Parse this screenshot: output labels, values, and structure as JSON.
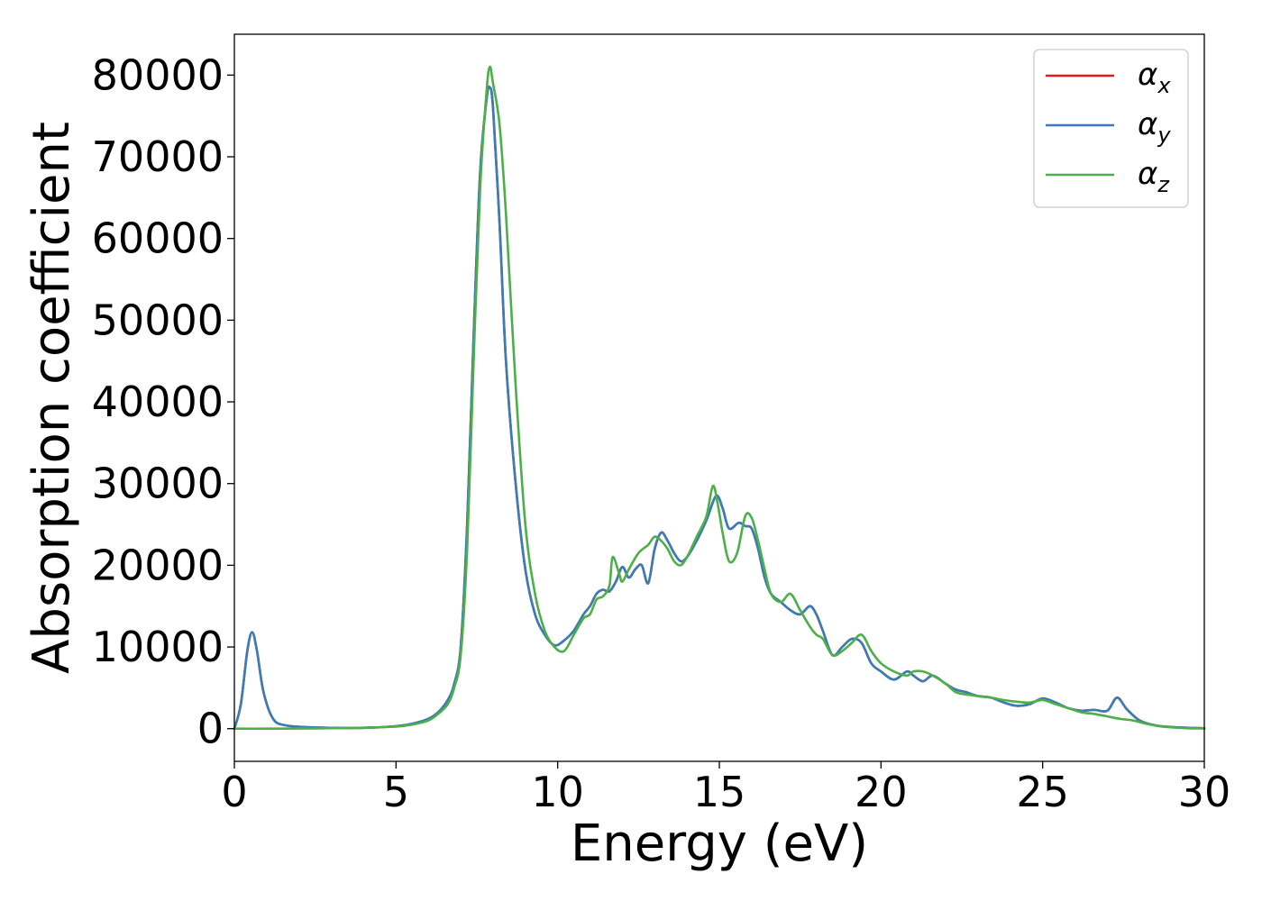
{
  "chart_data": {
    "type": "line",
    "title": "",
    "xlabel": "Energy (eV)",
    "ylabel": "Absorption coefficient",
    "xlim": [
      0,
      30
    ],
    "ylim": [
      -4000,
      85000
    ],
    "x_ticks": [
      "0",
      "5",
      "10",
      "15",
      "20",
      "25",
      "30"
    ],
    "y_ticks": [
      "0",
      "10000",
      "20000",
      "30000",
      "40000",
      "50000",
      "60000",
      "70000",
      "80000"
    ],
    "grid": false,
    "legend_position": "top-right",
    "series": [
      {
        "name": "α",
        "subscript": "x",
        "color": "#e41a1c",
        "x": [
          0,
          0.2,
          0.4,
          0.55,
          0.7,
          0.9,
          1.2,
          1.6,
          2.5,
          4,
          5,
          5.5,
          6,
          6.3,
          6.6,
          6.8,
          7.0,
          7.2,
          7.4,
          7.6,
          7.8,
          7.9,
          8.0,
          8.2,
          8.4,
          8.7,
          9.0,
          9.3,
          9.6,
          9.9,
          10.2,
          10.5,
          10.8,
          11.0,
          11.2,
          11.4,
          11.6,
          11.8,
          12.0,
          12.2,
          12.4,
          12.6,
          12.8,
          13.0,
          13.2,
          13.4,
          13.6,
          13.8,
          14.0,
          14.3,
          14.6,
          14.9,
          15.1,
          15.3,
          15.6,
          15.8,
          16.0,
          16.2,
          16.4,
          16.6,
          16.9,
          17.2,
          17.5,
          17.8,
          18.0,
          18.2,
          18.5,
          18.8,
          19.1,
          19.4,
          19.7,
          20.0,
          20.4,
          20.8,
          21.0,
          21.3,
          21.6,
          22.0,
          22.3,
          22.6,
          23.0,
          23.4,
          23.8,
          24.2,
          24.6,
          25.0,
          25.4,
          25.8,
          26.2,
          26.6,
          27.0,
          27.3,
          27.6,
          28.0,
          28.5,
          29.0,
          29.5,
          30
        ],
        "values": [
          0,
          3000,
          9500,
          11800,
          9500,
          4500,
          1200,
          400,
          150,
          100,
          300,
          600,
          1200,
          2000,
          3500,
          5500,
          10000,
          25000,
          48000,
          68000,
          77000,
          78500,
          76000,
          62000,
          45000,
          30000,
          19500,
          14000,
          11500,
          10200,
          10800,
          12000,
          14000,
          15000,
          16500,
          17000,
          16800,
          18000,
          19800,
          18500,
          19500,
          20000,
          17800,
          22000,
          24000,
          23000,
          21500,
          20500,
          21000,
          23000,
          25500,
          28500,
          27000,
          24500,
          25200,
          24800,
          24500,
          22000,
          18500,
          16500,
          15500,
          14500,
          14000,
          15000,
          14000,
          12000,
          9000,
          10000,
          11000,
          10500,
          8000,
          7000,
          6000,
          7000,
          6500,
          5800,
          6500,
          5500,
          4800,
          4500,
          4000,
          3800,
          3200,
          2800,
          3000,
          3700,
          3200,
          2500,
          2200,
          2300,
          2200,
          3800,
          2400,
          1000,
          400,
          200,
          100,
          50
        ]
      },
      {
        "name": "α",
        "subscript": "y",
        "color": "#377eb8",
        "x": [
          0,
          0.2,
          0.4,
          0.55,
          0.7,
          0.9,
          1.2,
          1.6,
          2.5,
          4,
          5,
          5.5,
          6,
          6.3,
          6.6,
          6.8,
          7.0,
          7.2,
          7.4,
          7.6,
          7.8,
          7.9,
          8.0,
          8.2,
          8.4,
          8.7,
          9.0,
          9.3,
          9.6,
          9.9,
          10.2,
          10.5,
          10.8,
          11.0,
          11.2,
          11.4,
          11.6,
          11.8,
          12.0,
          12.2,
          12.4,
          12.6,
          12.8,
          13.0,
          13.2,
          13.4,
          13.6,
          13.8,
          14.0,
          14.3,
          14.6,
          14.9,
          15.1,
          15.3,
          15.6,
          15.8,
          16.0,
          16.2,
          16.4,
          16.6,
          16.9,
          17.2,
          17.5,
          17.8,
          18.0,
          18.2,
          18.5,
          18.8,
          19.1,
          19.4,
          19.7,
          20.0,
          20.4,
          20.8,
          21.0,
          21.3,
          21.6,
          22.0,
          22.3,
          22.6,
          23.0,
          23.4,
          23.8,
          24.2,
          24.6,
          25.0,
          25.4,
          25.8,
          26.2,
          26.6,
          27.0,
          27.3,
          27.6,
          28.0,
          28.5,
          29.0,
          29.5,
          30
        ],
        "values": [
          0,
          3000,
          9500,
          11800,
          9500,
          4500,
          1200,
          400,
          150,
          100,
          300,
          600,
          1200,
          2000,
          3500,
          5500,
          10000,
          25000,
          48000,
          68000,
          77000,
          78500,
          76000,
          62000,
          45000,
          30000,
          19500,
          14000,
          11500,
          10200,
          10800,
          12000,
          14000,
          15000,
          16500,
          17000,
          16800,
          18000,
          19800,
          18500,
          19500,
          20000,
          17800,
          22000,
          24000,
          23000,
          21500,
          20500,
          21000,
          23000,
          25500,
          28500,
          27000,
          24500,
          25200,
          24800,
          24500,
          22000,
          18500,
          16500,
          15500,
          14500,
          14000,
          15000,
          14000,
          12000,
          9000,
          10000,
          11000,
          10500,
          8000,
          7000,
          6000,
          7000,
          6500,
          5800,
          6500,
          5500,
          4800,
          4500,
          4000,
          3800,
          3200,
          2800,
          3000,
          3700,
          3200,
          2500,
          2200,
          2300,
          2200,
          3800,
          2400,
          1000,
          400,
          200,
          100,
          50
        ]
      },
      {
        "name": "α",
        "subscript": "z",
        "color": "#4daf4a",
        "x": [
          0,
          1,
          2,
          3,
          4,
          5,
          5.5,
          6,
          6.3,
          6.6,
          6.8,
          7.0,
          7.2,
          7.4,
          7.6,
          7.8,
          7.9,
          8.0,
          8.2,
          8.4,
          8.7,
          9.0,
          9.3,
          9.6,
          9.9,
          10.2,
          10.5,
          10.8,
          11.0,
          11.2,
          11.4,
          11.6,
          11.7,
          11.9,
          12.0,
          12.2,
          12.5,
          12.8,
          13.0,
          13.2,
          13.4,
          13.6,
          13.8,
          14.0,
          14.3,
          14.6,
          14.8,
          14.95,
          15.1,
          15.3,
          15.55,
          15.8,
          16.0,
          16.2,
          16.4,
          16.6,
          16.9,
          17.2,
          17.5,
          17.8,
          18.0,
          18.2,
          18.5,
          18.8,
          19.1,
          19.4,
          19.7,
          20.0,
          20.4,
          20.8,
          21.0,
          21.3,
          21.6,
          22.0,
          22.3,
          22.6,
          23.0,
          23.4,
          23.8,
          24.2,
          24.6,
          25.0,
          25.4,
          25.8,
          26.2,
          26.6,
          27.0,
          27.4,
          27.8,
          28.2,
          28.6,
          29.0,
          29.5,
          30
        ],
        "values": [
          0,
          0,
          20,
          60,
          120,
          250,
          500,
          1000,
          1800,
          3000,
          5000,
          9000,
          22000,
          45000,
          66000,
          78000,
          81000,
          79000,
          74000,
          63000,
          42000,
          25000,
          16500,
          12000,
          10000,
          9500,
          11500,
          13500,
          14000,
          15800,
          16200,
          17500,
          21000,
          19000,
          18000,
          19500,
          21500,
          22500,
          23500,
          23000,
          22000,
          20500,
          20000,
          21000,
          23500,
          26000,
          29700,
          27500,
          24000,
          20500,
          21500,
          26000,
          25800,
          23000,
          19500,
          16500,
          15500,
          16500,
          14500,
          12500,
          11500,
          11000,
          9000,
          9500,
          10500,
          11500,
          9500,
          8000,
          7000,
          6500,
          7000,
          7000,
          6500,
          5500,
          4500,
          4200,
          4000,
          3800,
          3500,
          3300,
          3200,
          3500,
          3000,
          2500,
          2000,
          1800,
          1500,
          1200,
          1000,
          600,
          300,
          150,
          50,
          20
        ]
      }
    ]
  }
}
